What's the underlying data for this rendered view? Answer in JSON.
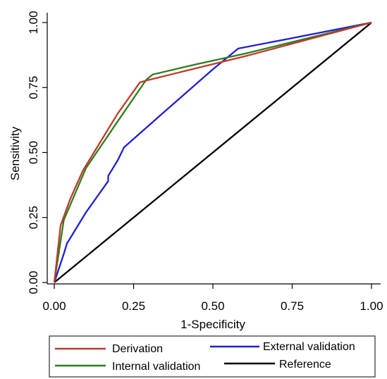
{
  "chart_data": {
    "type": "line",
    "title": "",
    "xlabel": "1-Specificity",
    "ylabel": "Sensitivity",
    "xlim": [
      0,
      1
    ],
    "ylim": [
      0,
      1
    ],
    "x_ticks": [
      "0.00",
      "0.25",
      "0.50",
      "0.75",
      "1.00"
    ],
    "y_ticks": [
      "0.00",
      "0.25",
      "0.50",
      "0.75",
      "1.00"
    ],
    "grid": false,
    "legend_position": "bottom",
    "series": [
      {
        "name": "Derivation",
        "color": "#c0392b",
        "points": [
          [
            0,
            0
          ],
          [
            0.02,
            0.22
          ],
          [
            0.05,
            0.32
          ],
          [
            0.09,
            0.43
          ],
          [
            0.15,
            0.55
          ],
          [
            0.2,
            0.65
          ],
          [
            0.27,
            0.77
          ],
          [
            0.3,
            0.78
          ],
          [
            0.6,
            0.87
          ],
          [
            1,
            1
          ]
        ]
      },
      {
        "name": "External validation",
        "color": "#1f1fd1",
        "points": [
          [
            0,
            0
          ],
          [
            0.03,
            0.11
          ],
          [
            0.04,
            0.15
          ],
          [
            0.1,
            0.27
          ],
          [
            0.17,
            0.39
          ],
          [
            0.17,
            0.41
          ],
          [
            0.2,
            0.47
          ],
          [
            0.22,
            0.52
          ],
          [
            0.35,
            0.66
          ],
          [
            0.5,
            0.82
          ],
          [
            0.58,
            0.9
          ],
          [
            0.75,
            0.94
          ],
          [
            1,
            1
          ]
        ]
      },
      {
        "name": "Internal validation",
        "color": "#2e7d1e",
        "points": [
          [
            0,
            0
          ],
          [
            0.03,
            0.24
          ],
          [
            0.1,
            0.44
          ],
          [
            0.2,
            0.62
          ],
          [
            0.29,
            0.78
          ],
          [
            0.31,
            0.8
          ],
          [
            0.45,
            0.84
          ],
          [
            0.6,
            0.88
          ],
          [
            0.8,
            0.94
          ],
          [
            1,
            1
          ]
        ]
      },
      {
        "name": "Reference",
        "color": "#000000",
        "points": [
          [
            0,
            0
          ],
          [
            1,
            1
          ]
        ]
      }
    ]
  }
}
